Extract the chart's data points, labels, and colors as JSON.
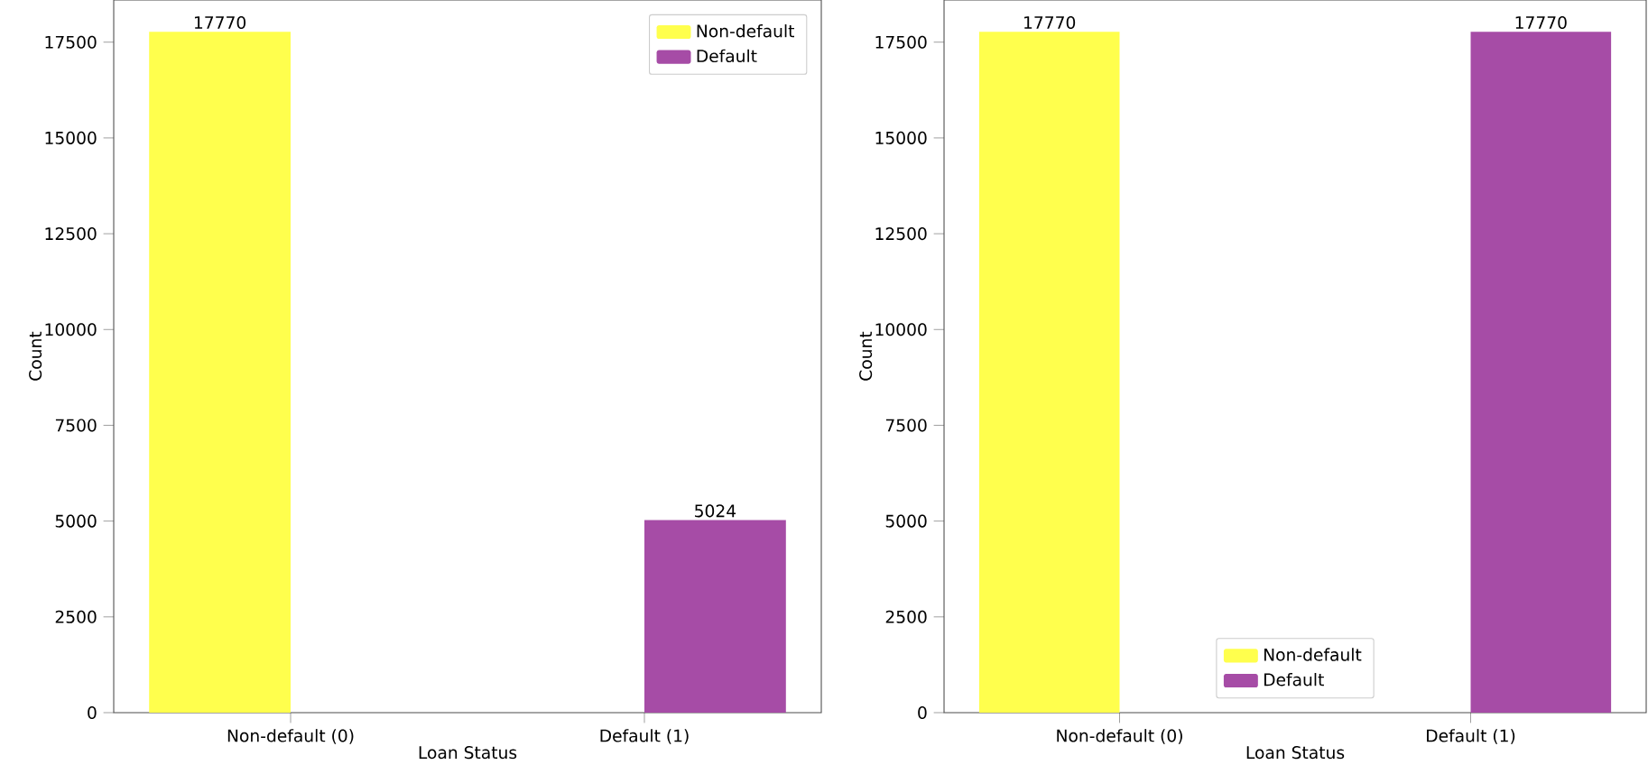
{
  "chart_data": [
    {
      "type": "bar",
      "xlabel": "Loan Status",
      "ylabel": "Count",
      "categories": [
        "Non-default (0)",
        "Default (1)"
      ],
      "series": [
        {
          "name": "Non-default",
          "color": "#ffff4d",
          "values": [
            17770,
            null
          ]
        },
        {
          "name": "Default",
          "color": "#a64ca6",
          "values": [
            null,
            5024
          ]
        }
      ],
      "ylim": [
        0,
        18600
      ],
      "yticks": [
        0,
        2500,
        5000,
        7500,
        10000,
        12500,
        15000,
        17500
      ],
      "data_labels": true,
      "legend": "top right",
      "grid": false
    },
    {
      "type": "bar",
      "xlabel": "Loan Status",
      "ylabel": "Count",
      "categories": [
        "Non-default (0)",
        "Default (1)"
      ],
      "series": [
        {
          "name": "Non-default",
          "color": "#ffff4d",
          "values": [
            17770,
            null
          ]
        },
        {
          "name": "Default",
          "color": "#a64ca6",
          "values": [
            null,
            17770
          ]
        }
      ],
      "ylim": [
        0,
        18600
      ],
      "yticks": [
        0,
        2500,
        5000,
        7500,
        10000,
        12500,
        15000,
        17500
      ],
      "data_labels": true,
      "legend": "bottom",
      "grid": false
    }
  ]
}
